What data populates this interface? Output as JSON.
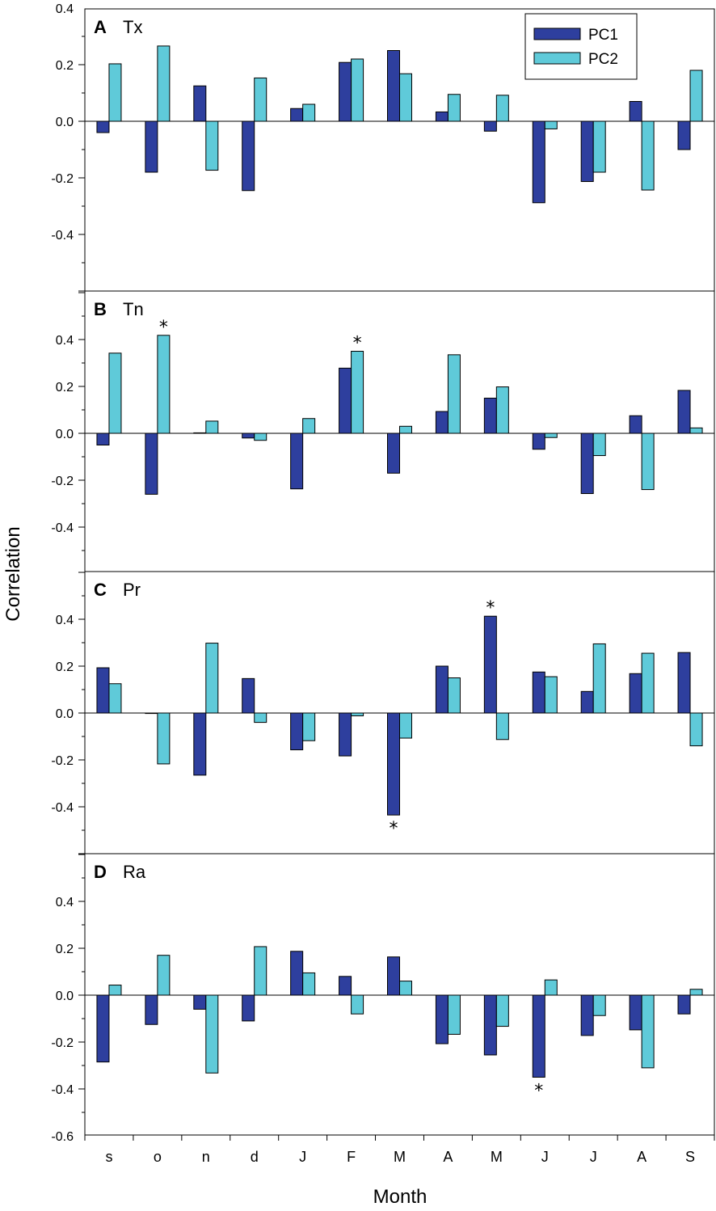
{
  "chart_data": {
    "type": "bar",
    "xlabel": "Month",
    "ylabel": "Correlation",
    "categories": [
      "s",
      "o",
      "n",
      "d",
      "J",
      "F",
      "M",
      "A",
      "M",
      "J",
      "J",
      "A",
      "S"
    ],
    "legend": {
      "position": "top-right",
      "entries": [
        {
          "name": "PC1",
          "color": "#2E3F9E"
        },
        {
          "name": "PC2",
          "color": "#5FCAD9"
        }
      ]
    },
    "colors": {
      "pc1": "#2E3F9E",
      "pc2": "#5FCAD9",
      "stroke": "#000000"
    },
    "significance_marker": "*",
    "panels": [
      {
        "letter": "A",
        "variable": "Tx",
        "ylim": [
          -0.6,
          0.4
        ],
        "ytick_labels": [
          "-0.4",
          "-0.2",
          "0.0",
          "0.2",
          "0.4"
        ],
        "series": [
          {
            "name": "PC1",
            "values": [
              -0.04,
              -0.18,
              0.125,
              -0.245,
              0.045,
              0.208,
              0.25,
              0.033,
              -0.035,
              -0.288,
              -0.213,
              0.07,
              -0.1
            ]
          },
          {
            "name": "PC2",
            "values": [
              0.203,
              0.266,
              -0.173,
              0.153,
              0.06,
              0.22,
              0.168,
              0.095,
              0.092,
              -0.027,
              -0.18,
              -0.243,
              0.18
            ]
          }
        ],
        "significant": []
      },
      {
        "letter": "B",
        "variable": "Tn",
        "ylim": [
          -0.6,
          0.6
        ],
        "ytick_labels": [
          "-0.4",
          "-0.2",
          "0.0",
          "0.2",
          "0.4"
        ],
        "series": [
          {
            "name": "PC1",
            "values": [
              -0.05,
              -0.26,
              0.002,
              -0.02,
              -0.237,
              0.278,
              -0.17,
              0.093,
              0.15,
              -0.068,
              -0.257,
              0.075,
              0.183
            ]
          },
          {
            "name": "PC2",
            "values": [
              0.342,
              0.418,
              0.052,
              -0.03,
              0.063,
              0.35,
              0.03,
              0.335,
              0.198,
              -0.018,
              -0.095,
              -0.24,
              0.023
            ]
          }
        ],
        "significant": [
          {
            "series": 1,
            "index": 1
          },
          {
            "series": 1,
            "index": 5
          }
        ]
      },
      {
        "letter": "C",
        "variable": "Pr",
        "ylim": [
          -0.6,
          0.6
        ],
        "ytick_labels": [
          "-0.4",
          "-0.2",
          "0.0",
          "0.2",
          "0.4"
        ],
        "series": [
          {
            "name": "PC1",
            "values": [
              0.193,
              0.0,
              -0.265,
              0.147,
              -0.157,
              -0.183,
              -0.435,
              0.2,
              0.413,
              0.175,
              0.092,
              0.168,
              0.258
            ]
          },
          {
            "name": "PC2",
            "values": [
              0.125,
              -0.217,
              0.298,
              -0.04,
              -0.118,
              -0.012,
              -0.107,
              0.15,
              -0.113,
              0.155,
              0.295,
              0.255,
              -0.14
            ]
          }
        ],
        "significant": [
          {
            "series": 0,
            "index": 6
          },
          {
            "series": 0,
            "index": 8
          }
        ]
      },
      {
        "letter": "D",
        "variable": "Ra",
        "ylim": [
          -0.6,
          0.6
        ],
        "ytick_labels": [
          "-0.6",
          "-0.4",
          "-0.2",
          "0.0",
          "0.2",
          "0.4"
        ],
        "series": [
          {
            "name": "PC1",
            "values": [
              -0.285,
              -0.125,
              -0.06,
              -0.11,
              0.187,
              0.08,
              0.163,
              -0.207,
              -0.255,
              -0.35,
              -0.172,
              -0.148,
              -0.08
            ]
          },
          {
            "name": "PC2",
            "values": [
              0.043,
              0.17,
              -0.332,
              0.207,
              0.095,
              -0.08,
              0.06,
              -0.167,
              -0.133,
              0.065,
              -0.087,
              -0.31,
              0.025
            ]
          }
        ],
        "significant": [
          {
            "series": 0,
            "index": 9
          }
        ]
      }
    ]
  }
}
